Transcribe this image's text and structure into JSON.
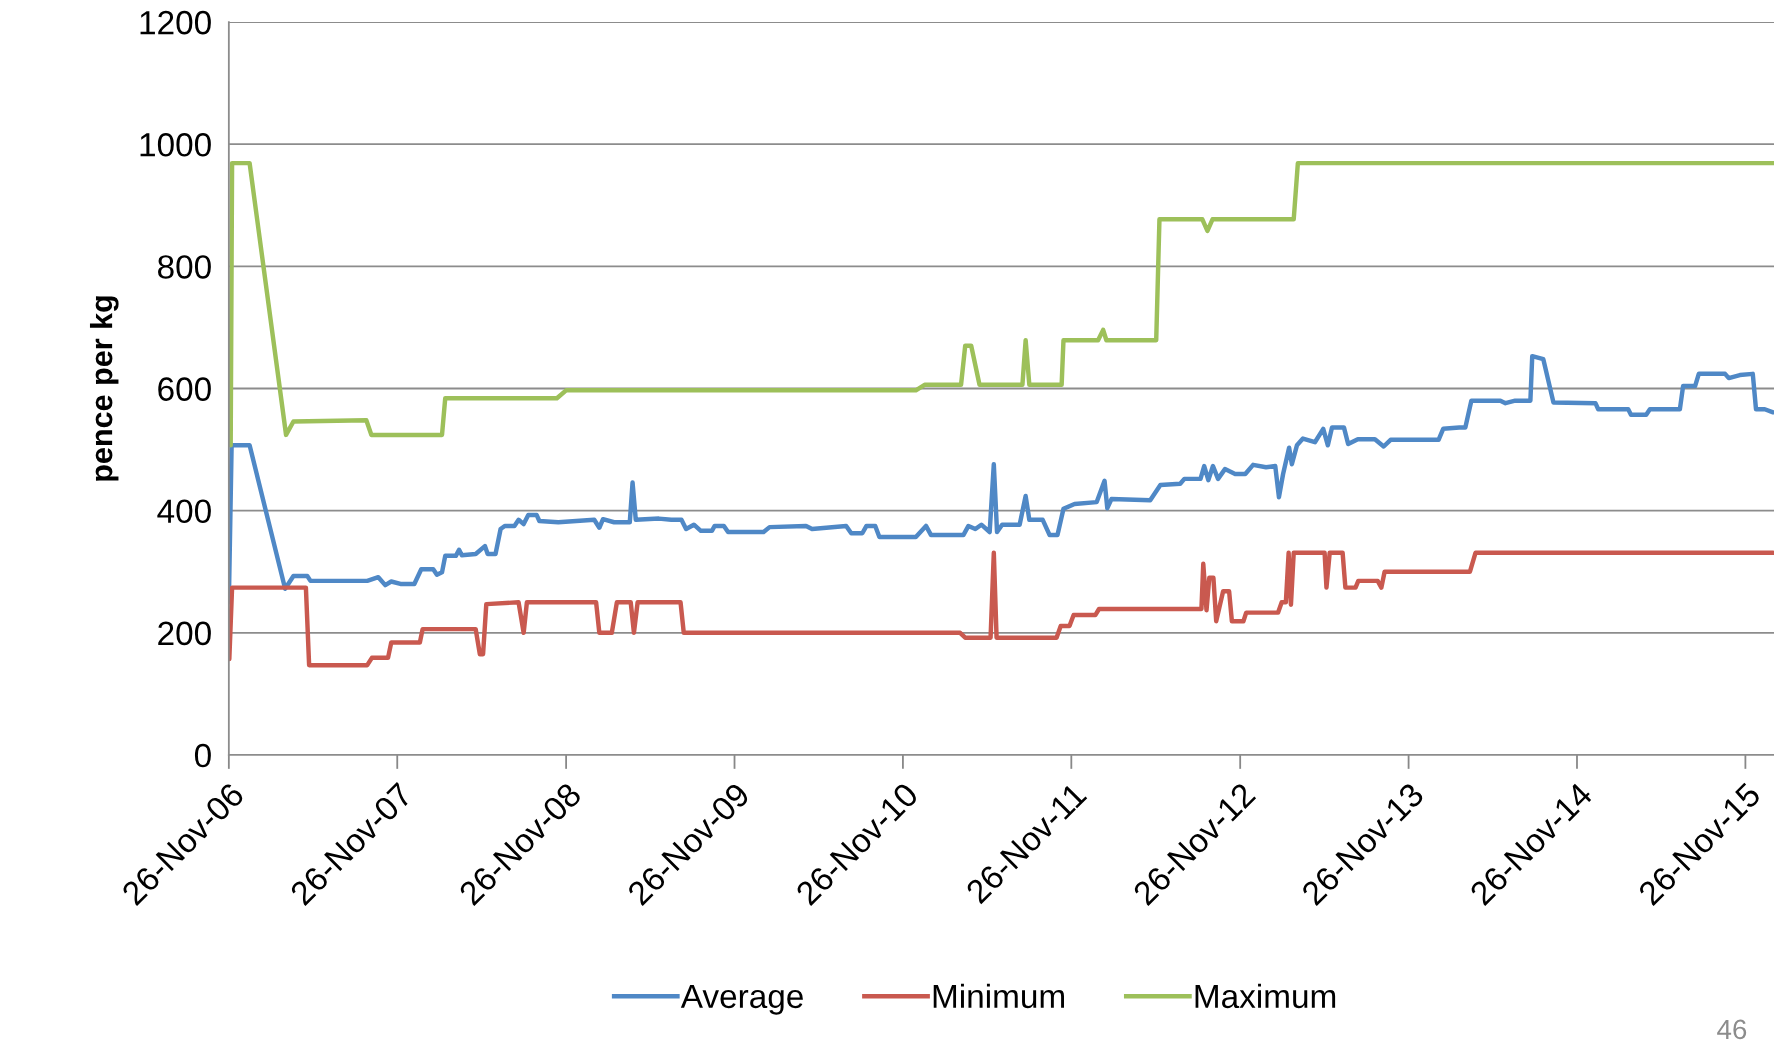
{
  "chart_data": {
    "type": "line",
    "ylabel": "pence per kg",
    "xlim": [
      "2006-11-26",
      "2016-01-27"
    ],
    "xticks": [
      {
        "value": "2006-11-26",
        "label": "26-Nov-06"
      },
      {
        "value": "2007-11-26",
        "label": "26-Nov-07"
      },
      {
        "value": "2008-11-26",
        "label": "26-Nov-08"
      },
      {
        "value": "2009-11-26",
        "label": "26-Nov-09"
      },
      {
        "value": "2010-11-26",
        "label": "26-Nov-10"
      },
      {
        "value": "2011-11-26",
        "label": "26-Nov-11"
      },
      {
        "value": "2012-11-26",
        "label": "26-Nov-12"
      },
      {
        "value": "2013-11-26",
        "label": "26-Nov-13"
      },
      {
        "value": "2014-11-26",
        "label": "26-Nov-14"
      },
      {
        "value": "2015-11-26",
        "label": "26-Nov-15"
      }
    ],
    "ylim": [
      0,
      1200
    ],
    "yticks": [
      0,
      200,
      400,
      600,
      800,
      1000,
      1200
    ],
    "grid": "y",
    "legend": "bottom",
    "marker": "none",
    "line_style": "solid",
    "annotations": [
      "46"
    ],
    "series": [
      {
        "name": "Average",
        "color": "#4f88c6",
        "x": [
          "2006-11-26",
          "2006-12-02",
          "2007-01-10",
          "2007-03-28",
          "2007-04-15",
          "2007-05-15",
          "2007-05-22",
          "2007-09-22",
          "2007-10-16",
          "2007-10-31",
          "2007-11-13",
          "2007-12-03",
          "2008-01-02",
          "2008-01-17",
          "2008-02-12",
          "2008-02-20",
          "2008-03-02",
          "2008-03-09",
          "2008-04-01",
          "2008-04-08",
          "2008-04-14",
          "2008-05-14",
          "2008-06-03",
          "2008-06-09",
          "2008-06-26",
          "2008-07-07",
          "2008-07-16",
          "2008-08-06",
          "2008-08-15",
          "2008-08-26",
          "2008-09-05",
          "2008-09-23",
          "2008-09-29",
          "2008-11-09",
          "2009-01-26",
          "2009-02-06",
          "2009-02-14",
          "2009-03-10",
          "2009-04-13",
          "2009-04-19",
          "2009-04-26",
          "2009-06-15",
          "2009-07-12",
          "2009-08-03",
          "2009-08-13",
          "2009-08-30",
          "2009-09-14",
          "2009-10-08",
          "2009-10-14",
          "2009-11-03",
          "2009-11-12",
          "2010-01-28",
          "2010-02-10",
          "2010-04-30",
          "2010-05-13",
          "2010-07-26",
          "2010-08-06",
          "2010-08-30",
          "2010-09-08",
          "2010-09-27",
          "2010-10-06",
          "2010-12-24",
          "2011-01-15",
          "2011-01-26",
          "2011-04-06",
          "2011-04-17",
          "2011-05-02",
          "2011-05-15",
          "2011-06-02",
          "2011-06-11",
          "2011-06-18",
          "2011-06-29",
          "2011-08-06",
          "2011-08-19",
          "2011-08-27",
          "2011-09-25",
          "2011-10-10",
          "2011-10-27",
          "2011-11-09",
          "2011-12-03",
          "2012-01-20",
          "2012-02-06",
          "2012-02-12",
          "2012-02-21",
          "2012-05-15",
          "2012-06-06",
          "2012-07-19",
          "2012-07-28",
          "2012-09-01",
          "2012-09-09",
          "2012-09-18",
          "2012-09-28",
          "2012-10-09",
          "2012-10-24",
          "2012-11-15",
          "2012-12-07",
          "2012-12-24",
          "2013-01-21",
          "2013-02-10",
          "2013-02-18",
          "2013-02-27",
          "2013-03-12",
          "2013-03-18",
          "2013-03-29",
          "2013-04-11",
          "2013-05-07",
          "2013-05-25",
          "2013-06-04",
          "2013-06-13",
          "2013-07-09",
          "2013-07-18",
          "2013-08-08",
          "2013-09-14",
          "2013-10-03",
          "2013-10-18",
          "2014-01-30",
          "2014-02-09",
          "2014-03-16",
          "2014-03-29",
          "2014-04-11",
          "2014-06-13",
          "2014-06-24",
          "2014-07-15",
          "2014-08-17",
          "2014-08-21",
          "2014-09-14",
          "2014-10-06",
          "2015-01-05",
          "2015-01-11",
          "2015-03-17",
          "2015-03-23",
          "2015-04-25",
          "2015-05-03",
          "2015-07-07",
          "2015-07-14",
          "2015-08-09",
          "2015-08-17",
          "2015-10-13",
          "2015-10-21",
          "2015-11-14",
          "2015-12-12",
          "2015-12-19",
          "2016-01-07",
          "2016-01-25"
        ],
        "values": [
          250,
          507,
          507,
          272,
          293,
          293,
          285,
          285,
          291,
          278,
          284,
          280,
          280,
          304,
          304,
          295,
          299,
          326,
          326,
          336,
          327,
          329,
          342,
          329,
          329,
          370,
          375,
          375,
          385,
          378,
          393,
          393,
          383,
          381,
          385,
          372,
          386,
          381,
          381,
          446,
          385,
          387,
          385,
          385,
          370,
          377,
          367,
          367,
          375,
          375,
          365,
          365,
          373,
          375,
          370,
          375,
          363,
          363,
          375,
          375,
          357,
          357,
          375,
          360,
          360,
          375,
          370,
          377,
          365,
          476,
          365,
          377,
          377,
          424,
          385,
          385,
          360,
          360,
          403,
          411,
          414,
          449,
          404,
          419,
          417,
          442,
          444,
          452,
          452,
          473,
          450,
          473,
          452,
          468,
          460,
          460,
          475,
          471,
          473,
          422,
          460,
          503,
          476,
          507,
          518,
          512,
          534,
          507,
          536,
          536,
          509,
          517,
          517,
          505,
          516,
          516,
          534,
          536,
          536,
          580,
          580,
          576,
          580,
          580,
          653,
          648,
          577,
          576,
          566,
          566,
          557,
          557,
          566,
          566,
          604,
          604,
          624,
          624,
          617,
          622,
          624,
          566,
          566,
          561
        ]
      },
      {
        "name": "Minimum",
        "color": "#c9594f",
        "x": [
          "2006-11-27",
          "2006-12-03",
          "2007-05-12",
          "2007-05-19",
          "2007-09-22",
          "2007-10-02",
          "2007-11-06",
          "2007-11-13",
          "2008-01-14",
          "2008-01-20",
          "2008-05-14",
          "2008-05-23",
          "2008-05-30",
          "2008-06-06",
          "2008-08-15",
          "2008-08-26",
          "2008-09-02",
          "2009-01-30",
          "2009-02-06",
          "2009-03-05",
          "2009-03-16",
          "2009-04-15",
          "2009-04-22",
          "2009-04-30",
          "2009-08-01",
          "2009-08-08",
          "2011-03-30",
          "2011-04-10",
          "2011-06-04",
          "2011-06-11",
          "2011-06-17",
          "2011-10-25",
          "2011-11-03",
          "2011-11-22",
          "2011-12-01",
          "2012-01-17",
          "2012-01-25",
          "2012-09-03",
          "2012-09-07",
          "2012-09-14",
          "2012-09-20",
          "2012-09-29",
          "2012-10-05",
          "2012-10-20",
          "2012-11-02",
          "2012-11-08",
          "2012-12-03",
          "2012-12-09",
          "2013-02-16",
          "2013-02-24",
          "2013-03-05",
          "2013-03-11",
          "2013-03-16",
          "2013-03-22",
          "2013-05-28",
          "2013-06-01",
          "2013-06-08",
          "2013-07-06",
          "2013-07-12",
          "2013-08-03",
          "2013-08-09",
          "2013-09-20",
          "2013-09-28",
          "2013-10-05",
          "2014-04-08",
          "2014-04-20",
          "2016-01-25"
        ],
        "values": [
          157,
          274,
          274,
          147,
          147,
          159,
          159,
          184,
          184,
          206,
          206,
          165,
          165,
          247,
          250,
          200,
          250,
          250,
          200,
          200,
          250,
          250,
          200,
          250,
          250,
          200,
          200,
          192,
          192,
          331,
          192,
          192,
          211,
          211,
          229,
          229,
          239,
          239,
          313,
          237,
          290,
          290,
          219,
          268,
          268,
          219,
          219,
          233,
          233,
          250,
          250,
          331,
          246,
          331,
          331,
          274,
          331,
          331,
          274,
          274,
          285,
          285,
          274,
          300,
          300,
          331,
          331
        ]
      },
      {
        "name": "Maximum",
        "color": "#9dc05a",
        "x": [
          "2006-11-30",
          "2006-12-03",
          "2007-01-10",
          "2007-03-30",
          "2007-04-15",
          "2007-09-20",
          "2007-10-01",
          "2008-03-02",
          "2008-03-09",
          "2008-11-06",
          "2008-11-26",
          "2010-12-24",
          "2011-01-12",
          "2011-04-01",
          "2011-04-10",
          "2011-04-23",
          "2011-05-11",
          "2011-08-12",
          "2011-08-19",
          "2011-08-27",
          "2011-11-05",
          "2011-11-09",
          "2012-01-23",
          "2012-02-03",
          "2012-02-10",
          "2012-05-28",
          "2012-06-04",
          "2012-09-05",
          "2012-09-16",
          "2012-09-27",
          "2013-03-22",
          "2013-03-31",
          "2016-01-25"
        ],
        "values": [
          507,
          969,
          969,
          524,
          546,
          548,
          524,
          524,
          584,
          584,
          597,
          597,
          606,
          606,
          670,
          670,
          606,
          606,
          679,
          606,
          606,
          679,
          679,
          696,
          679,
          679,
          877,
          877,
          858,
          877,
          877,
          969,
          969
        ]
      }
    ]
  }
}
